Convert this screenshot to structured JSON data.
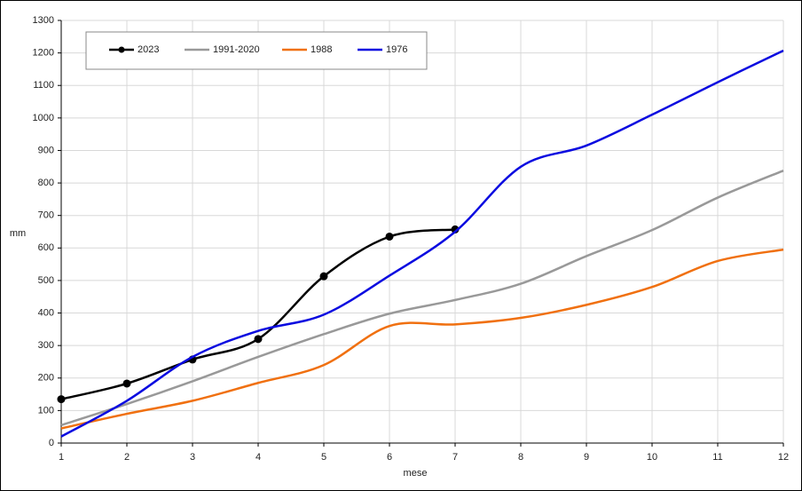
{
  "chart_data": {
    "type": "line",
    "x_label": "mese",
    "y_label": "mm",
    "x": [
      1,
      2,
      3,
      4,
      5,
      6,
      7,
      8,
      9,
      10,
      11,
      12
    ],
    "xlim": [
      1,
      12
    ],
    "xticks": [
      1,
      2,
      3,
      4,
      5,
      6,
      7,
      8,
      9,
      10,
      11,
      12
    ],
    "ylim": [
      0,
      1300
    ],
    "yticks": [
      0,
      100,
      200,
      300,
      400,
      500,
      600,
      700,
      800,
      900,
      1000,
      1100,
      1200,
      1300
    ],
    "grid": true,
    "legend": "top-left",
    "series": [
      {
        "name": "2023",
        "color": "#000000",
        "markers": true,
        "values": [
          135,
          183,
          257,
          320,
          513,
          635,
          657,
          null,
          null,
          null,
          null,
          null
        ]
      },
      {
        "name": "1991-2020",
        "color": "#999999",
        "values": [
          55,
          120,
          190,
          265,
          335,
          398,
          440,
          490,
          575,
          655,
          755,
          838
        ]
      },
      {
        "name": "1988",
        "color": "#f07010",
        "values": [
          45,
          90,
          130,
          185,
          240,
          360,
          365,
          385,
          425,
          480,
          560,
          595
        ]
      },
      {
        "name": "1976",
        "color": "#0a0ae0",
        "values": [
          20,
          130,
          265,
          345,
          395,
          515,
          650,
          850,
          915,
          1010,
          1110,
          1207
        ]
      }
    ]
  }
}
